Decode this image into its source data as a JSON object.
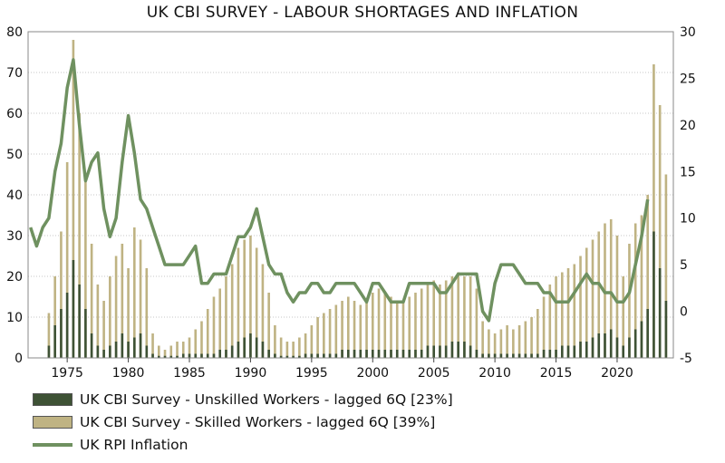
{
  "chart_data": {
    "type": "bar+line",
    "title": "UK CBI SURVEY - LABOUR SHORTAGES AND INFLATION",
    "x_range": [
      1971.8,
      2024.6
    ],
    "x_ticks": [
      "1975",
      "1980",
      "1985",
      "1990",
      "1995",
      "2000",
      "2005",
      "2010",
      "2015",
      "2020"
    ],
    "x_tick_values": [
      1975,
      1980,
      1985,
      1990,
      1995,
      2000,
      2005,
      2010,
      2015,
      2020
    ],
    "left_axis": {
      "range": [
        0,
        80
      ],
      "ticks": [
        "0",
        "10",
        "20",
        "30",
        "40",
        "50",
        "60",
        "70",
        "80"
      ]
    },
    "right_axis": {
      "range": [
        -5,
        30
      ],
      "ticks": [
        "-5",
        "0",
        "5",
        "10",
        "15",
        "20",
        "25",
        "30"
      ]
    },
    "legend": [
      {
        "label": "UK CBI Survey - Unskilled Workers - lagged 6Q [23%]",
        "color": "#3e5235"
      },
      {
        "label": "UK CBI Survey - Skilled Workers - lagged 6Q [39%]",
        "color": "#bfb383"
      },
      {
        "label": "UK RPI Inflation",
        "color": "#6f9160"
      }
    ],
    "series": [
      {
        "name": "UK CBI Survey - Skilled Workers - lagged 6Q [39%]",
        "axis": "left",
        "kind": "bar",
        "points": [
          [
            1973.5,
            11
          ],
          [
            1974.0,
            20
          ],
          [
            1974.5,
            31
          ],
          [
            1975.0,
            48
          ],
          [
            1975.5,
            78
          ],
          [
            1976.0,
            60
          ],
          [
            1976.5,
            45
          ],
          [
            1977.0,
            28
          ],
          [
            1977.5,
            18
          ],
          [
            1978.0,
            14
          ],
          [
            1978.5,
            20
          ],
          [
            1979.0,
            25
          ],
          [
            1979.5,
            28
          ],
          [
            1980.0,
            22
          ],
          [
            1980.5,
            32
          ],
          [
            1981.0,
            29
          ],
          [
            1981.5,
            22
          ],
          [
            1982.0,
            6
          ],
          [
            1982.5,
            3
          ],
          [
            1983.0,
            2
          ],
          [
            1983.5,
            3
          ],
          [
            1984.0,
            4
          ],
          [
            1984.5,
            4
          ],
          [
            1985.0,
            5
          ],
          [
            1985.5,
            7
          ],
          [
            1986.0,
            9
          ],
          [
            1986.5,
            12
          ],
          [
            1987.0,
            15
          ],
          [
            1987.5,
            17
          ],
          [
            1988.0,
            20
          ],
          [
            1988.5,
            23
          ],
          [
            1989.0,
            27
          ],
          [
            1989.5,
            29
          ],
          [
            1990.0,
            30
          ],
          [
            1990.5,
            27
          ],
          [
            1991.0,
            23
          ],
          [
            1991.5,
            16
          ],
          [
            1992.0,
            8
          ],
          [
            1992.5,
            5
          ],
          [
            1993.0,
            4
          ],
          [
            1993.5,
            4
          ],
          [
            1994.0,
            5
          ],
          [
            1994.5,
            6
          ],
          [
            1995.0,
            8
          ],
          [
            1995.5,
            10
          ],
          [
            1996.0,
            11
          ],
          [
            1996.5,
            12
          ],
          [
            1997.0,
            13
          ],
          [
            1997.5,
            14
          ],
          [
            1998.0,
            15
          ],
          [
            1998.5,
            14
          ],
          [
            1999.0,
            13
          ],
          [
            1999.5,
            14
          ],
          [
            2000.0,
            16
          ],
          [
            2000.5,
            17
          ],
          [
            2001.0,
            16
          ],
          [
            2001.5,
            15
          ],
          [
            2002.0,
            14
          ],
          [
            2002.5,
            14
          ],
          [
            2003.0,
            15
          ],
          [
            2003.5,
            16
          ],
          [
            2004.0,
            17
          ],
          [
            2004.5,
            18
          ],
          [
            2005.0,
            19
          ],
          [
            2005.5,
            18
          ],
          [
            2006.0,
            19
          ],
          [
            2006.5,
            20
          ],
          [
            2007.0,
            21
          ],
          [
            2007.5,
            20
          ],
          [
            2008.0,
            20
          ],
          [
            2008.5,
            17
          ],
          [
            2009.0,
            9
          ],
          [
            2009.5,
            7
          ],
          [
            2010.0,
            6
          ],
          [
            2010.5,
            7
          ],
          [
            2011.0,
            8
          ],
          [
            2011.5,
            7
          ],
          [
            2012.0,
            8
          ],
          [
            2012.5,
            9
          ],
          [
            2013.0,
            10
          ],
          [
            2013.5,
            12
          ],
          [
            2014.0,
            15
          ],
          [
            2014.5,
            18
          ],
          [
            2015.0,
            20
          ],
          [
            2015.5,
            21
          ],
          [
            2016.0,
            22
          ],
          [
            2016.5,
            23
          ],
          [
            2017.0,
            25
          ],
          [
            2017.5,
            27
          ],
          [
            2018.0,
            29
          ],
          [
            2018.5,
            31
          ],
          [
            2019.0,
            33
          ],
          [
            2019.5,
            34
          ],
          [
            2020.0,
            30
          ],
          [
            2020.5,
            20
          ],
          [
            2021.0,
            28
          ],
          [
            2021.5,
            33
          ],
          [
            2022.0,
            35
          ],
          [
            2022.5,
            40
          ],
          [
            2023.0,
            72
          ],
          [
            2023.5,
            62
          ],
          [
            2024.0,
            45
          ]
        ]
      },
      {
        "name": "UK CBI Survey - Unskilled Workers - lagged 6Q [23%]",
        "axis": "left",
        "kind": "bar",
        "points": [
          [
            1973.5,
            3
          ],
          [
            1974.0,
            8
          ],
          [
            1974.5,
            12
          ],
          [
            1975.0,
            16
          ],
          [
            1975.5,
            24
          ],
          [
            1976.0,
            18
          ],
          [
            1976.5,
            12
          ],
          [
            1977.0,
            6
          ],
          [
            1977.5,
            3
          ],
          [
            1978.0,
            2
          ],
          [
            1978.5,
            3
          ],
          [
            1979.0,
            4
          ],
          [
            1979.5,
            6
          ],
          [
            1980.0,
            4
          ],
          [
            1980.5,
            5
          ],
          [
            1981.0,
            6
          ],
          [
            1981.5,
            3
          ],
          [
            1982.0,
            1
          ],
          [
            1982.5,
            0.5
          ],
          [
            1983.0,
            0.5
          ],
          [
            1983.5,
            0.5
          ],
          [
            1984.0,
            0.5
          ],
          [
            1984.5,
            1
          ],
          [
            1985.0,
            1
          ],
          [
            1985.5,
            1
          ],
          [
            1986.0,
            1
          ],
          [
            1986.5,
            1
          ],
          [
            1987.0,
            1
          ],
          [
            1987.5,
            2
          ],
          [
            1988.0,
            2
          ],
          [
            1988.5,
            3
          ],
          [
            1989.0,
            4
          ],
          [
            1989.5,
            5
          ],
          [
            1990.0,
            6
          ],
          [
            1990.5,
            5
          ],
          [
            1991.0,
            4
          ],
          [
            1991.5,
            2
          ],
          [
            1992.0,
            1
          ],
          [
            1992.5,
            0.5
          ],
          [
            1993.0,
            0.5
          ],
          [
            1993.5,
            0.5
          ],
          [
            1994.0,
            0.5
          ],
          [
            1994.5,
            1
          ],
          [
            1995.0,
            1
          ],
          [
            1995.5,
            1
          ],
          [
            1996.0,
            1
          ],
          [
            1996.5,
            1
          ],
          [
            1997.0,
            1
          ],
          [
            1997.5,
            2
          ],
          [
            1998.0,
            2
          ],
          [
            1998.5,
            2
          ],
          [
            1999.0,
            2
          ],
          [
            1999.5,
            2
          ],
          [
            2000.0,
            2
          ],
          [
            2000.5,
            2
          ],
          [
            2001.0,
            2
          ],
          [
            2001.5,
            2
          ],
          [
            2002.0,
            2
          ],
          [
            2002.5,
            2
          ],
          [
            2003.0,
            2
          ],
          [
            2003.5,
            2
          ],
          [
            2004.0,
            2
          ],
          [
            2004.5,
            3
          ],
          [
            2005.0,
            3
          ],
          [
            2005.5,
            3
          ],
          [
            2006.0,
            3
          ],
          [
            2006.5,
            4
          ],
          [
            2007.0,
            4
          ],
          [
            2007.5,
            4
          ],
          [
            2008.0,
            3
          ],
          [
            2008.5,
            2
          ],
          [
            2009.0,
            1
          ],
          [
            2009.5,
            1
          ],
          [
            2010.0,
            1
          ],
          [
            2010.5,
            1
          ],
          [
            2011.0,
            1
          ],
          [
            2011.5,
            1
          ],
          [
            2012.0,
            1
          ],
          [
            2012.5,
            1
          ],
          [
            2013.0,
            1
          ],
          [
            2013.5,
            1
          ],
          [
            2014.0,
            2
          ],
          [
            2014.5,
            2
          ],
          [
            2015.0,
            2
          ],
          [
            2015.5,
            3
          ],
          [
            2016.0,
            3
          ],
          [
            2016.5,
            3
          ],
          [
            2017.0,
            4
          ],
          [
            2017.5,
            4
          ],
          [
            2018.0,
            5
          ],
          [
            2018.5,
            6
          ],
          [
            2019.0,
            6
          ],
          [
            2019.5,
            7
          ],
          [
            2020.0,
            5
          ],
          [
            2020.5,
            3
          ],
          [
            2021.0,
            5
          ],
          [
            2021.5,
            7
          ],
          [
            2022.0,
            9
          ],
          [
            2022.5,
            12
          ],
          [
            2023.0,
            31
          ],
          [
            2023.5,
            22
          ],
          [
            2024.0,
            14
          ]
        ]
      },
      {
        "name": "UK RPI Inflation",
        "axis": "right",
        "kind": "line",
        "points": [
          [
            1972.0,
            9
          ],
          [
            1972.5,
            7
          ],
          [
            1973.0,
            9
          ],
          [
            1973.5,
            10
          ],
          [
            1974.0,
            15
          ],
          [
            1974.5,
            18
          ],
          [
            1975.0,
            24
          ],
          [
            1975.5,
            27
          ],
          [
            1976.0,
            20
          ],
          [
            1976.5,
            14
          ],
          [
            1977.0,
            16
          ],
          [
            1977.5,
            17
          ],
          [
            1978.0,
            11
          ],
          [
            1978.5,
            8
          ],
          [
            1979.0,
            10
          ],
          [
            1979.5,
            16
          ],
          [
            1980.0,
            21
          ],
          [
            1980.5,
            17
          ],
          [
            1981.0,
            12
          ],
          [
            1981.5,
            11
          ],
          [
            1982.0,
            9
          ],
          [
            1982.5,
            7
          ],
          [
            1983.0,
            5
          ],
          [
            1983.5,
            5
          ],
          [
            1984.0,
            5
          ],
          [
            1984.5,
            5
          ],
          [
            1985.0,
            6
          ],
          [
            1985.5,
            7
          ],
          [
            1986.0,
            3
          ],
          [
            1986.5,
            3
          ],
          [
            1987.0,
            4
          ],
          [
            1987.5,
            4
          ],
          [
            1988.0,
            4
          ],
          [
            1988.5,
            6
          ],
          [
            1989.0,
            8
          ],
          [
            1989.5,
            8
          ],
          [
            1990.0,
            9
          ],
          [
            1990.5,
            11
          ],
          [
            1991.0,
            8
          ],
          [
            1991.5,
            5
          ],
          [
            1992.0,
            4
          ],
          [
            1992.5,
            4
          ],
          [
            1993.0,
            2
          ],
          [
            1993.5,
            1
          ],
          [
            1994.0,
            2
          ],
          [
            1994.5,
            2
          ],
          [
            1995.0,
            3
          ],
          [
            1995.5,
            3
          ],
          [
            1996.0,
            2
          ],
          [
            1996.5,
            2
          ],
          [
            1997.0,
            3
          ],
          [
            1997.5,
            3
          ],
          [
            1998.0,
            3
          ],
          [
            1998.5,
            3
          ],
          [
            1999.0,
            2
          ],
          [
            1999.5,
            1
          ],
          [
            2000.0,
            3
          ],
          [
            2000.5,
            3
          ],
          [
            2001.0,
            2
          ],
          [
            2001.5,
            1
          ],
          [
            2002.0,
            1
          ],
          [
            2002.5,
            1
          ],
          [
            2003.0,
            3
          ],
          [
            2003.5,
            3
          ],
          [
            2004.0,
            3
          ],
          [
            2004.5,
            3
          ],
          [
            2005.0,
            3
          ],
          [
            2005.5,
            2
          ],
          [
            2006.0,
            2
          ],
          [
            2006.5,
            3
          ],
          [
            2007.0,
            4
          ],
          [
            2007.5,
            4
          ],
          [
            2008.0,
            4
          ],
          [
            2008.5,
            4
          ],
          [
            2009.0,
            0
          ],
          [
            2009.5,
            -1
          ],
          [
            2010.0,
            3
          ],
          [
            2010.5,
            5
          ],
          [
            2011.0,
            5
          ],
          [
            2011.5,
            5
          ],
          [
            2012.0,
            4
          ],
          [
            2012.5,
            3
          ],
          [
            2013.0,
            3
          ],
          [
            2013.5,
            3
          ],
          [
            2014.0,
            2
          ],
          [
            2014.5,
            2
          ],
          [
            2015.0,
            1
          ],
          [
            2015.5,
            1
          ],
          [
            2016.0,
            1
          ],
          [
            2016.5,
            2
          ],
          [
            2017.0,
            3
          ],
          [
            2017.5,
            4
          ],
          [
            2018.0,
            3
          ],
          [
            2018.5,
            3
          ],
          [
            2019.0,
            2
          ],
          [
            2019.5,
            2
          ],
          [
            2020.0,
            1
          ],
          [
            2020.5,
            1
          ],
          [
            2021.0,
            2
          ],
          [
            2021.5,
            5
          ],
          [
            2022.0,
            8
          ],
          [
            2022.5,
            12
          ]
        ]
      }
    ]
  }
}
